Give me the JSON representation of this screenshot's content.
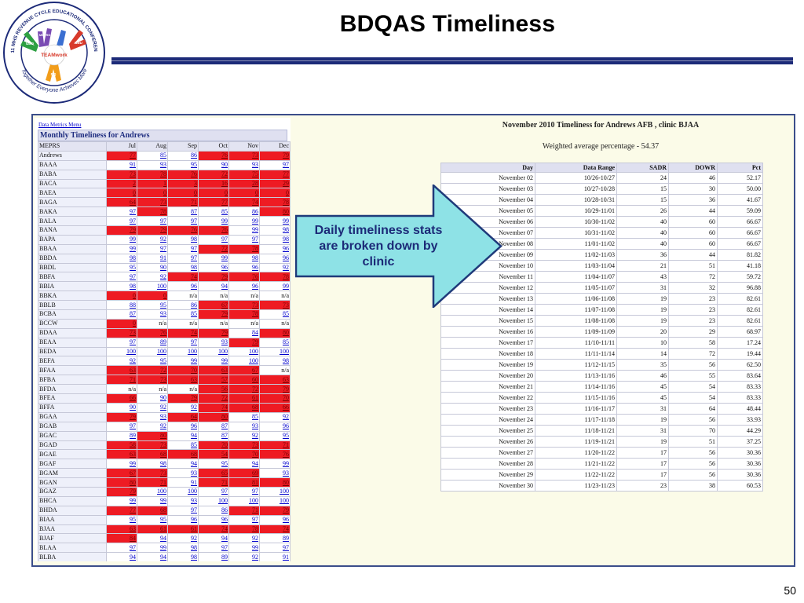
{
  "slide": {
    "title": "BDQAS Timeliness",
    "page_number": "50",
    "callout": "Daily timeliness stats are broken down by clinic",
    "logo": {
      "ring_text": "2011 MHS REVENUE CYCLE EDUCATIONAL CONFERENCE",
      "motto": "Together Everyone Achieves More",
      "center_label": "TEAMwork",
      "hand_labels": [
        "MEPRS",
        "UBO",
        "UBU",
        "DQ"
      ]
    },
    "colors": {
      "title_rule": "#1c2a78",
      "arrow_fill": "#8ee2e6",
      "arrow_stroke": "#1f3a7a",
      "red_cell": "#ee1b23"
    }
  },
  "left_panel": {
    "menu_link": "Data Metrics Menu",
    "heading": "Monthly Timeliness for Andrews",
    "columns": [
      "MEPRS",
      "Jul",
      "Aug",
      "Sep",
      "Oct",
      "Nov",
      "Dec"
    ],
    "rows": [
      {
        "name": "Andrews",
        "values": [
          "77",
          "85",
          "86",
          "76",
          "73",
          "79"
        ],
        "red": [
          1,
          0,
          0,
          1,
          1,
          1
        ]
      },
      {
        "name": "BAAA",
        "values": [
          "91",
          "93",
          "95",
          "90",
          "93",
          "97"
        ],
        "red": [
          0,
          0,
          0,
          0,
          0,
          0
        ]
      },
      {
        "name": "BABA",
        "values": [
          "73",
          "78",
          "76",
          "72",
          "75",
          "77"
        ],
        "red": [
          1,
          1,
          1,
          1,
          1,
          1
        ]
      },
      {
        "name": "BACA",
        "values": [
          "2",
          "1",
          "3",
          "16",
          "28",
          "29"
        ],
        "red": [
          1,
          1,
          1,
          1,
          1,
          1
        ]
      },
      {
        "name": "BAEA",
        "values": [
          "0",
          "0",
          "0",
          "0",
          "0",
          "0"
        ],
        "red": [
          1,
          1,
          1,
          1,
          1,
          1
        ]
      },
      {
        "name": "BAGA",
        "values": [
          "64",
          "73",
          "71",
          "77",
          "74",
          "78"
        ],
        "red": [
          1,
          1,
          1,
          1,
          1,
          1
        ]
      },
      {
        "name": "BAKA",
        "values": [
          "97",
          "78",
          "87",
          "85",
          "86",
          "80"
        ],
        "red": [
          0,
          1,
          0,
          0,
          0,
          1
        ]
      },
      {
        "name": "BALA",
        "values": [
          "97",
          "97",
          "97",
          "99",
          "99",
          "99"
        ],
        "red": [
          0,
          0,
          0,
          0,
          0,
          0
        ]
      },
      {
        "name": "BANA",
        "values": [
          "79",
          "79",
          "76",
          "76",
          "99",
          "98"
        ],
        "red": [
          1,
          1,
          1,
          1,
          0,
          0
        ]
      },
      {
        "name": "BAPA",
        "values": [
          "99",
          "92",
          "98",
          "97",
          "97",
          "98"
        ],
        "red": [
          0,
          0,
          0,
          0,
          0,
          0
        ]
      },
      {
        "name": "BBAA",
        "values": [
          "99",
          "97",
          "97",
          "72",
          "78",
          "96"
        ],
        "red": [
          0,
          0,
          0,
          1,
          1,
          0
        ]
      },
      {
        "name": "BBDA",
        "values": [
          "98",
          "91",
          "97",
          "99",
          "98",
          "96"
        ],
        "red": [
          0,
          0,
          0,
          0,
          0,
          0
        ]
      },
      {
        "name": "BBDL",
        "values": [
          "95",
          "90",
          "98",
          "96",
          "96",
          "92"
        ],
        "red": [
          0,
          0,
          0,
          0,
          0,
          0
        ]
      },
      {
        "name": "BBFA",
        "values": [
          "97",
          "92",
          "74",
          "79",
          "76",
          "78"
        ],
        "red": [
          0,
          0,
          1,
          1,
          1,
          1
        ]
      },
      {
        "name": "BBIA",
        "values": [
          "98",
          "100",
          "96",
          "94",
          "96",
          "99"
        ],
        "red": [
          0,
          0,
          0,
          0,
          0,
          0
        ]
      },
      {
        "name": "BBKA",
        "values": [
          "0",
          "0",
          "n/a",
          "n/a",
          "n/a",
          "n/a"
        ],
        "red": [
          1,
          1,
          0,
          0,
          0,
          0
        ]
      },
      {
        "name": "BBLB",
        "values": [
          "88",
          "95",
          "86",
          "67",
          "73",
          "73"
        ],
        "red": [
          0,
          0,
          0,
          1,
          1,
          1
        ]
      },
      {
        "name": "BCBA",
        "values": [
          "87",
          "93",
          "85",
          "79",
          "78",
          "85"
        ],
        "red": [
          0,
          0,
          0,
          1,
          1,
          0
        ]
      },
      {
        "name": "BCCW",
        "values": [
          "0",
          "n/a",
          "n/a",
          "n/a",
          "n/a",
          "n/a"
        ],
        "red": [
          1,
          0,
          0,
          0,
          0,
          0
        ]
      },
      {
        "name": "BDAA",
        "values": [
          "73",
          "76",
          "74",
          "79",
          "84",
          "80"
        ],
        "red": [
          1,
          1,
          1,
          1,
          0,
          1
        ]
      },
      {
        "name": "BEAA",
        "values": [
          "97",
          "89",
          "97",
          "93",
          "79",
          "85"
        ],
        "red": [
          0,
          0,
          0,
          0,
          1,
          0
        ]
      },
      {
        "name": "BEDA",
        "values": [
          "100",
          "100",
          "100",
          "100",
          "100",
          "100"
        ],
        "red": [
          0,
          0,
          0,
          0,
          0,
          0
        ]
      },
      {
        "name": "BEFA",
        "values": [
          "92",
          "95",
          "99",
          "99",
          "100",
          "98"
        ],
        "red": [
          0,
          0,
          0,
          0,
          0,
          0
        ]
      },
      {
        "name": "BFAA",
        "values": [
          "63",
          "72",
          "70",
          "63",
          "67",
          "n/a"
        ],
        "red": [
          1,
          1,
          1,
          1,
          1,
          0
        ]
      },
      {
        "name": "BFBA",
        "values": [
          "71",
          "73",
          "63",
          "57",
          "60",
          "63"
        ],
        "red": [
          1,
          1,
          1,
          1,
          1,
          1
        ]
      },
      {
        "name": "BFDA",
        "values": [
          "n/a",
          "n/a",
          "n/a",
          "56",
          "72",
          "79"
        ],
        "red": [
          0,
          0,
          0,
          1,
          1,
          1
        ]
      },
      {
        "name": "BFEA",
        "values": [
          "66",
          "90",
          "79",
          "72",
          "61",
          "70"
        ],
        "red": [
          1,
          0,
          1,
          1,
          1,
          1
        ]
      },
      {
        "name": "BFFA",
        "values": [
          "90",
          "92",
          "92",
          "74",
          "68",
          "66"
        ],
        "red": [
          0,
          0,
          0,
          1,
          1,
          1
        ]
      },
      {
        "name": "BGAA",
        "values": [
          "79",
          "93",
          "64",
          "80",
          "85",
          "92"
        ],
        "red": [
          1,
          0,
          1,
          1,
          0,
          0
        ]
      },
      {
        "name": "BGAB",
        "values": [
          "97",
          "92",
          "96",
          "87",
          "93",
          "96"
        ],
        "red": [
          0,
          0,
          0,
          0,
          0,
          0
        ]
      },
      {
        "name": "BGAC",
        "values": [
          "89",
          "80",
          "94",
          "87",
          "92",
          "95"
        ],
        "red": [
          0,
          1,
          0,
          0,
          0,
          0
        ]
      },
      {
        "name": "BGAD",
        "values": [
          "58",
          "73",
          "85",
          "70",
          "73",
          "71"
        ],
        "red": [
          1,
          1,
          0,
          1,
          1,
          1
        ]
      },
      {
        "name": "BGAE",
        "values": [
          "63",
          "68",
          "68",
          "54",
          "70",
          "76"
        ],
        "red": [
          1,
          1,
          1,
          1,
          1,
          1
        ]
      },
      {
        "name": "BGAF",
        "values": [
          "99",
          "98",
          "94",
          "95",
          "94",
          "99"
        ],
        "red": [
          0,
          0,
          0,
          0,
          0,
          0
        ]
      },
      {
        "name": "BGAM",
        "values": [
          "67",
          "73",
          "93",
          "65",
          "69",
          "93"
        ],
        "red": [
          1,
          1,
          0,
          1,
          1,
          0
        ]
      },
      {
        "name": "BGAN",
        "values": [
          "80",
          "71",
          "91",
          "71",
          "81",
          "80"
        ],
        "red": [
          1,
          1,
          0,
          1,
          1,
          1
        ]
      },
      {
        "name": "BGAZ",
        "values": [
          "79",
          "100",
          "100",
          "97",
          "97",
          "100"
        ],
        "red": [
          1,
          0,
          0,
          0,
          0,
          0
        ]
      },
      {
        "name": "BHCA",
        "values": [
          "99",
          "99",
          "93",
          "100",
          "100",
          "100"
        ],
        "red": [
          0,
          0,
          0,
          0,
          0,
          0
        ]
      },
      {
        "name": "BHDA",
        "values": [
          "77",
          "68",
          "97",
          "86",
          "71",
          "79"
        ],
        "red": [
          1,
          1,
          0,
          0,
          1,
          1
        ]
      },
      {
        "name": "BIAA",
        "values": [
          "95",
          "95",
          "96",
          "96",
          "97",
          "96"
        ],
        "red": [
          0,
          0,
          0,
          0,
          0,
          0
        ]
      },
      {
        "name": "BJAA",
        "values": [
          "63",
          "61",
          "61",
          "74",
          "78",
          "74"
        ],
        "red": [
          1,
          1,
          1,
          1,
          1,
          1
        ]
      },
      {
        "name": "BJAF",
        "values": [
          "84",
          "94",
          "92",
          "94",
          "92",
          "89"
        ],
        "red": [
          1,
          0,
          0,
          0,
          0,
          0
        ]
      },
      {
        "name": "BLAA",
        "values": [
          "97",
          "99",
          "98",
          "97",
          "99",
          "97"
        ],
        "red": [
          0,
          0,
          0,
          0,
          0,
          0
        ]
      },
      {
        "name": "BLBA",
        "values": [
          "94",
          "94",
          "98",
          "89",
          "92",
          "91"
        ],
        "red": [
          0,
          0,
          0,
          0,
          0,
          0
        ]
      }
    ]
  },
  "right_panel": {
    "title": "November 2010 Timeliness for Andrews AFB , clinic BJAA",
    "subtitle": "Weighted average percentage - 54.37",
    "columns": [
      "Day",
      "Data Range",
      "SADR",
      "DOWR",
      "Pct"
    ],
    "rows": [
      [
        "November 02",
        "10/26-10/27",
        "24",
        "46",
        "52.17"
      ],
      [
        "November 03",
        "10/27-10/28",
        "15",
        "30",
        "50.00"
      ],
      [
        "November 04",
        "10/28-10/31",
        "15",
        "36",
        "41.67"
      ],
      [
        "November 05",
        "10/29-11/01",
        "26",
        "44",
        "59.09"
      ],
      [
        "November 06",
        "10/30-11/02",
        "40",
        "60",
        "66.67"
      ],
      [
        "November 07",
        "10/31-11/02",
        "40",
        "60",
        "66.67"
      ],
      [
        "November 08",
        "11/01-11/02",
        "40",
        "60",
        "66.67"
      ],
      [
        "November 09",
        "11/02-11/03",
        "36",
        "44",
        "81.82"
      ],
      [
        "November 10",
        "11/03-11/04",
        "21",
        "51",
        "41.18"
      ],
      [
        "November 11",
        "11/04-11/07",
        "43",
        "72",
        "59.72"
      ],
      [
        "November 12",
        "11/05-11/07",
        "31",
        "32",
        "96.88"
      ],
      [
        "November 13",
        "11/06-11/08",
        "19",
        "23",
        "82.61"
      ],
      [
        "November 14",
        "11/07-11/08",
        "19",
        "23",
        "82.61"
      ],
      [
        "November 15",
        "11/08-11/08",
        "19",
        "23",
        "82.61"
      ],
      [
        "November 16",
        "11/09-11/09",
        "20",
        "29",
        "68.97"
      ],
      [
        "November 17",
        "11/10-11/11",
        "10",
        "58",
        "17.24"
      ],
      [
        "November 18",
        "11/11-11/14",
        "14",
        "72",
        "19.44"
      ],
      [
        "November 19",
        "11/12-11/15",
        "35",
        "56",
        "62.50"
      ],
      [
        "November 20",
        "11/13-11/16",
        "46",
        "55",
        "83.64"
      ],
      [
        "November 21",
        "11/14-11/16",
        "45",
        "54",
        "83.33"
      ],
      [
        "November 22",
        "11/15-11/16",
        "45",
        "54",
        "83.33"
      ],
      [
        "November 23",
        "11/16-11/17",
        "31",
        "64",
        "48.44"
      ],
      [
        "November 24",
        "11/17-11/18",
        "19",
        "56",
        "33.93"
      ],
      [
        "November 25",
        "11/18-11/21",
        "31",
        "70",
        "44.29"
      ],
      [
        "November 26",
        "11/19-11/21",
        "19",
        "51",
        "37.25"
      ],
      [
        "November 27",
        "11/20-11/22",
        "17",
        "56",
        "30.36"
      ],
      [
        "November 28",
        "11/21-11/22",
        "17",
        "56",
        "30.36"
      ],
      [
        "November 29",
        "11/22-11/22",
        "17",
        "56",
        "30.36"
      ],
      [
        "November 30",
        "11/23-11/23",
        "23",
        "38",
        "60.53"
      ]
    ]
  }
}
